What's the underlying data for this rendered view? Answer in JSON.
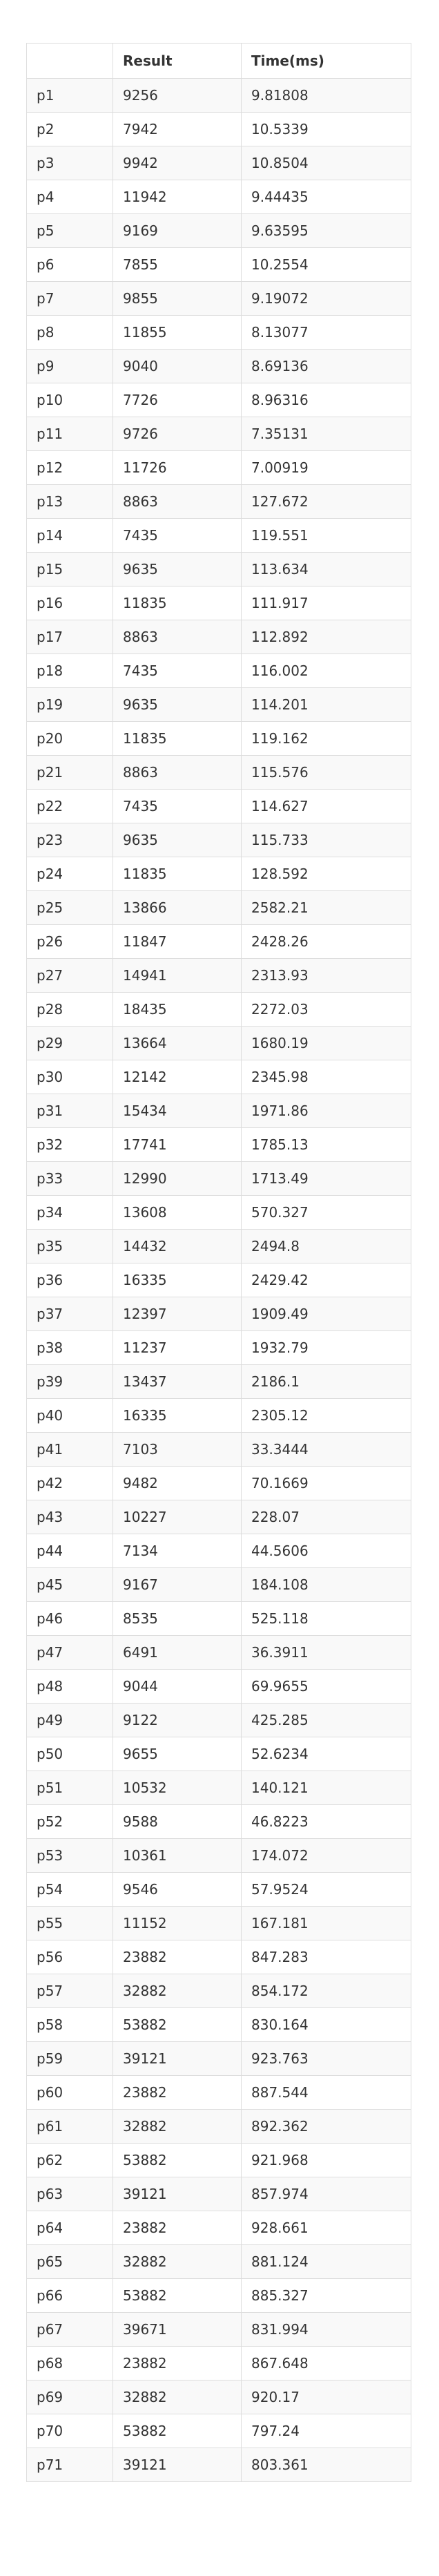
{
  "table": {
    "headers": [
      "",
      "Result",
      "Time(ms)"
    ],
    "rows": [
      [
        "p1",
        "9256",
        "9.81808"
      ],
      [
        "p2",
        "7942",
        "10.5339"
      ],
      [
        "p3",
        "9942",
        "10.8504"
      ],
      [
        "p4",
        "11942",
        "9.44435"
      ],
      [
        "p5",
        "9169",
        "9.63595"
      ],
      [
        "p6",
        "7855",
        "10.2554"
      ],
      [
        "p7",
        "9855",
        "9.19072"
      ],
      [
        "p8",
        "11855",
        "8.13077"
      ],
      [
        "p9",
        "9040",
        "8.69136"
      ],
      [
        "p10",
        "7726",
        "8.96316"
      ],
      [
        "p11",
        "9726",
        "7.35131"
      ],
      [
        "p12",
        "11726",
        "7.00919"
      ],
      [
        "p13",
        "8863",
        "127.672"
      ],
      [
        "p14",
        "7435",
        "119.551"
      ],
      [
        "p15",
        "9635",
        "113.634"
      ],
      [
        "p16",
        "11835",
        "111.917"
      ],
      [
        "p17",
        "8863",
        "112.892"
      ],
      [
        "p18",
        "7435",
        "116.002"
      ],
      [
        "p19",
        "9635",
        "114.201"
      ],
      [
        "p20",
        "11835",
        "119.162"
      ],
      [
        "p21",
        "8863",
        "115.576"
      ],
      [
        "p22",
        "7435",
        "114.627"
      ],
      [
        "p23",
        "9635",
        "115.733"
      ],
      [
        "p24",
        "11835",
        "128.592"
      ],
      [
        "p25",
        "13866",
        "2582.21"
      ],
      [
        "p26",
        "11847",
        "2428.26"
      ],
      [
        "p27",
        "14941",
        "2313.93"
      ],
      [
        "p28",
        "18435",
        "2272.03"
      ],
      [
        "p29",
        "13664",
        "1680.19"
      ],
      [
        "p30",
        "12142",
        "2345.98"
      ],
      [
        "p31",
        "15434",
        "1971.86"
      ],
      [
        "p32",
        "17741",
        "1785.13"
      ],
      [
        "p33",
        "12990",
        "1713.49"
      ],
      [
        "p34",
        "13608",
        "570.327"
      ],
      [
        "p35",
        "14432",
        "2494.8"
      ],
      [
        "p36",
        "16335",
        "2429.42"
      ],
      [
        "p37",
        "12397",
        "1909.49"
      ],
      [
        "p38",
        "11237",
        "1932.79"
      ],
      [
        "p39",
        "13437",
        "2186.1"
      ],
      [
        "p40",
        "16335",
        "2305.12"
      ],
      [
        "p41",
        "7103",
        "33.3444"
      ],
      [
        "p42",
        "9482",
        "70.1669"
      ],
      [
        "p43",
        "10227",
        "228.07"
      ],
      [
        "p44",
        "7134",
        "44.5606"
      ],
      [
        "p45",
        "9167",
        "184.108"
      ],
      [
        "p46",
        "8535",
        "525.118"
      ],
      [
        "p47",
        "6491",
        "36.3911"
      ],
      [
        "p48",
        "9044",
        "69.9655"
      ],
      [
        "p49",
        "9122",
        "425.285"
      ],
      [
        "p50",
        "9655",
        "52.6234"
      ],
      [
        "p51",
        "10532",
        "140.121"
      ],
      [
        "p52",
        "9588",
        "46.8223"
      ],
      [
        "p53",
        "10361",
        "174.072"
      ],
      [
        "p54",
        "9546",
        "57.9524"
      ],
      [
        "p55",
        "11152",
        "167.181"
      ],
      [
        "p56",
        "23882",
        "847.283"
      ],
      [
        "p57",
        "32882",
        "854.172"
      ],
      [
        "p58",
        "53882",
        "830.164"
      ],
      [
        "p59",
        "39121",
        "923.763"
      ],
      [
        "p60",
        "23882",
        "887.544"
      ],
      [
        "p61",
        "32882",
        "892.362"
      ],
      [
        "p62",
        "53882",
        "921.968"
      ],
      [
        "p63",
        "39121",
        "857.974"
      ],
      [
        "p64",
        "23882",
        "928.661"
      ],
      [
        "p65",
        "32882",
        "881.124"
      ],
      [
        "p66",
        "53882",
        "885.327"
      ],
      [
        "p67",
        "39671",
        "831.994"
      ],
      [
        "p68",
        "23882",
        "867.648"
      ],
      [
        "p69",
        "32882",
        "920.17"
      ],
      [
        "p70",
        "53882",
        "797.24"
      ],
      [
        "p71",
        "39121",
        "803.361"
      ]
    ]
  }
}
